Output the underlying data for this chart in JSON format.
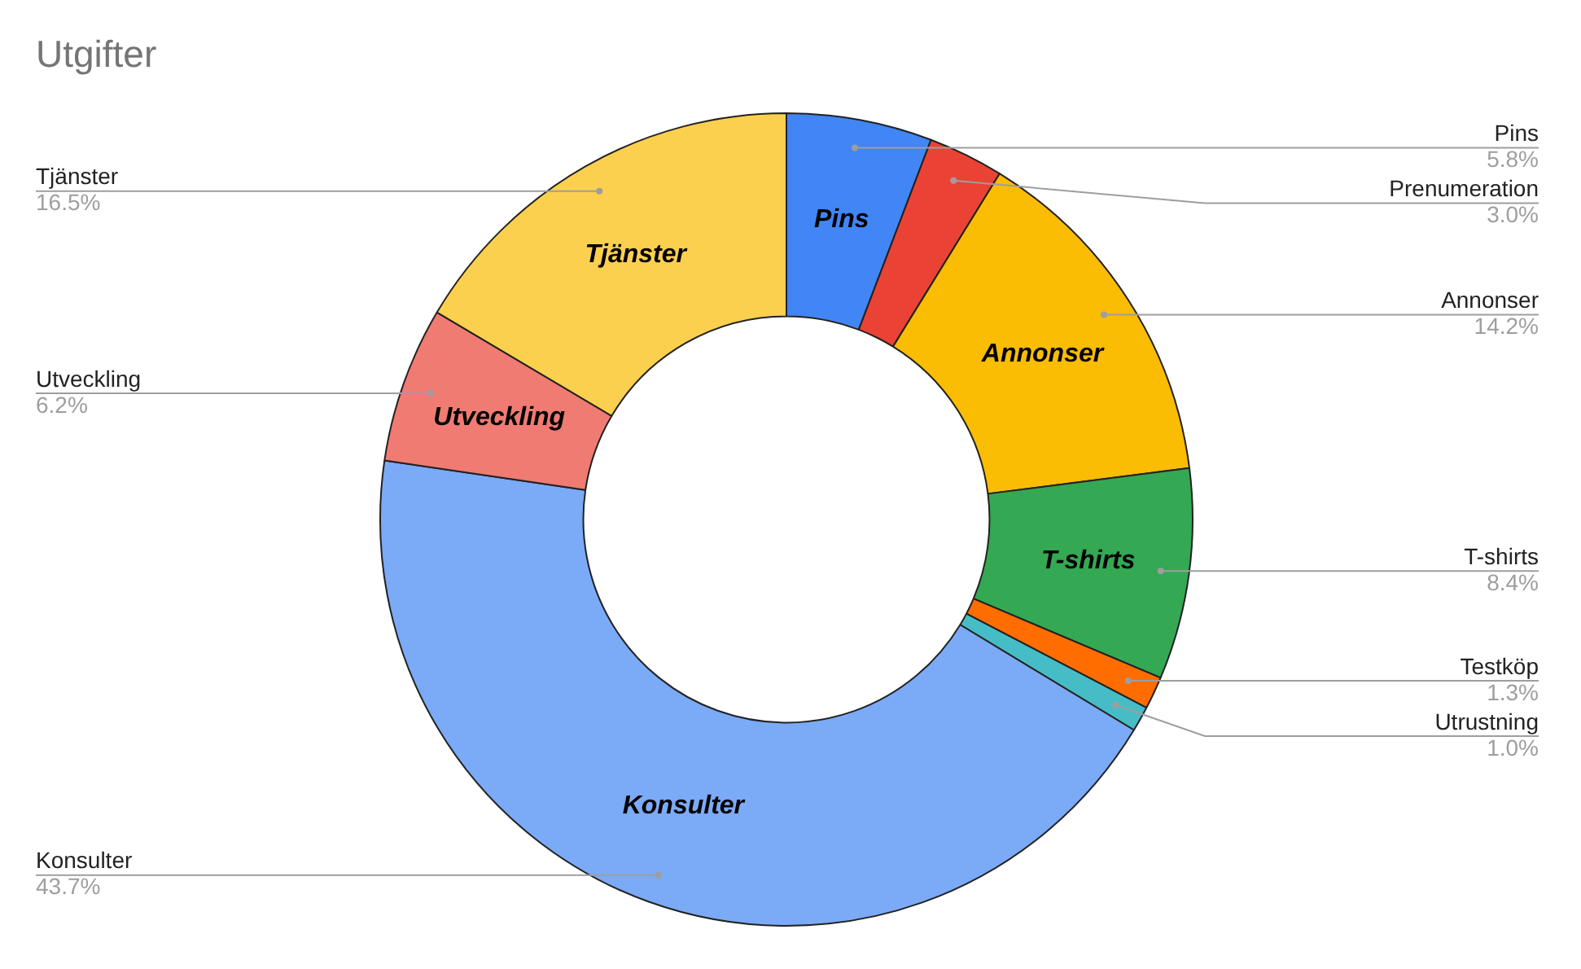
{
  "chart_data": {
    "type": "donut",
    "title": "Utgifter",
    "categories": [
      "Pins",
      "Prenumeration",
      "Annonser",
      "T-shirts",
      "Testköp",
      "Utrustning",
      "Konsulter",
      "Utveckling",
      "Tjänster"
    ],
    "values": [
      5.8,
      3.0,
      14.2,
      8.4,
      1.3,
      1.0,
      43.7,
      6.2,
      16.5
    ],
    "colors": [
      "#4285f4",
      "#ea4335",
      "#fbbc04",
      "#34a853",
      "#ff6d01",
      "#46bdc6",
      "#7baaf7",
      "#f07b72",
      "#fcd04f"
    ],
    "value_labels": [
      "5.8%",
      "3.0%",
      "14.2%",
      "8.4%",
      "1.3%",
      "1.0%",
      "43.7%",
      "6.2%",
      "16.5%"
    ],
    "legend": false
  }
}
